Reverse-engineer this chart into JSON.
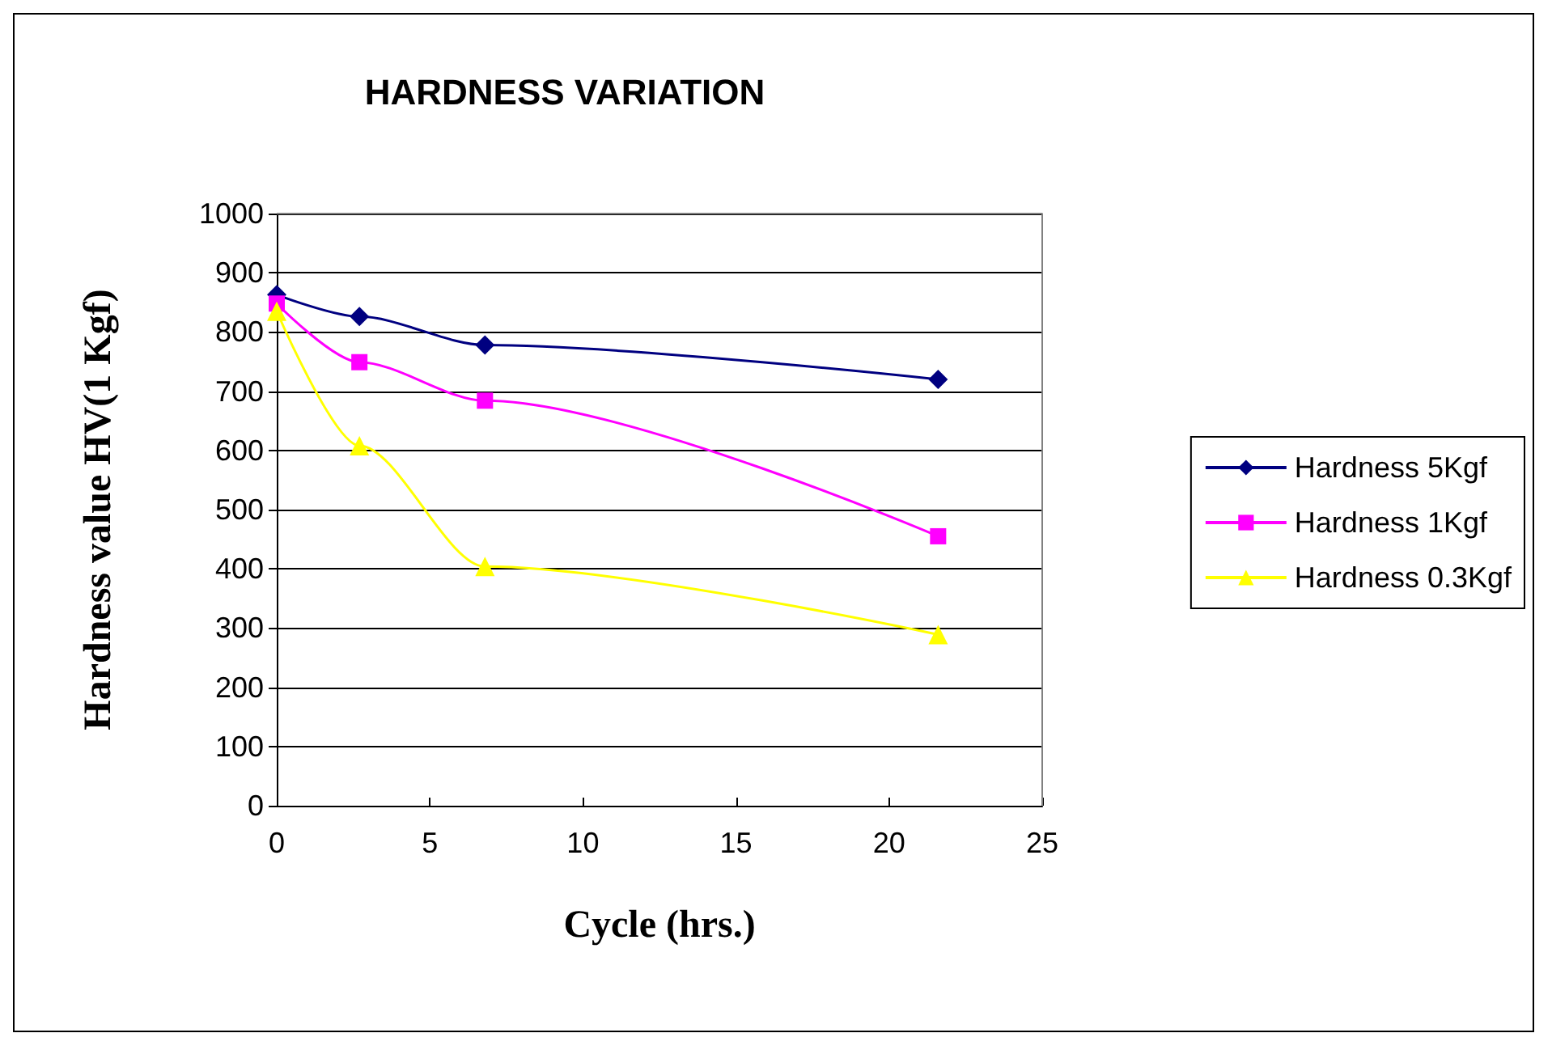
{
  "chart_data": {
    "type": "line",
    "title": "HARDNESS VARIATION",
    "xlabel": "Cycle (hrs.)",
    "ylabel": "Hardness value HV(1 Kgf)",
    "x": [
      0,
      2.7,
      6.8,
      21.6
    ],
    "series": [
      {
        "name": "Hardness 5Kgf",
        "color": "#000080",
        "marker": "diamond",
        "values": [
          863,
          826,
          778,
          720
        ]
      },
      {
        "name": "Hardness 1Kgf",
        "color": "#ff00ff",
        "marker": "square",
        "values": [
          848,
          749,
          684,
          455
        ]
      },
      {
        "name": "Hardness 0.3Kgf",
        "color": "#ffff00",
        "marker": "triangle",
        "values": [
          835,
          608,
          404,
          289
        ]
      }
    ],
    "xlim": [
      0,
      25
    ],
    "xticks": [
      0,
      5,
      10,
      15,
      20,
      25
    ],
    "ylim": [
      0,
      1000
    ],
    "yticks": [
      0,
      100,
      200,
      300,
      400,
      500,
      600,
      700,
      800,
      900,
      1000
    ],
    "grid": "y",
    "legend": "right",
    "line_style": "solid"
  }
}
